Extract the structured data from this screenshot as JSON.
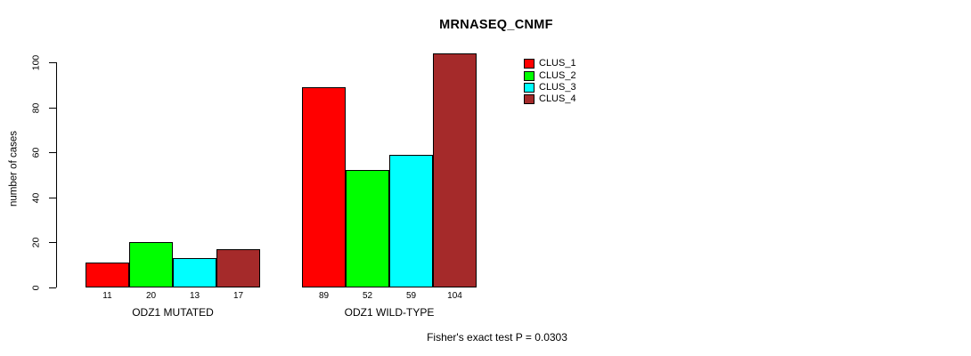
{
  "chart_data": {
    "type": "bar",
    "title": "MRNASEQ_CNMF",
    "ylabel": "number of cases",
    "xlabel": "",
    "yticks": [
      0,
      20,
      40,
      60,
      80,
      100
    ],
    "ylim": [
      0,
      104
    ],
    "grid": false,
    "legend_position": "top-right",
    "categories": [
      "ODZ1 MUTATED",
      "ODZ1 WILD-TYPE"
    ],
    "series": [
      {
        "name": "CLUS_1",
        "color": "#FF0000",
        "values": [
          11,
          89
        ]
      },
      {
        "name": "CLUS_2",
        "color": "#00FF00",
        "values": [
          20,
          52
        ]
      },
      {
        "name": "CLUS_3",
        "color": "#00FFFF",
        "values": [
          13,
          59
        ]
      },
      {
        "name": "CLUS_4",
        "color": "#A52A2A",
        "values": [
          17,
          104
        ]
      }
    ],
    "bar_value_labels": [
      [
        11,
        20,
        13,
        17
      ],
      [
        89,
        52,
        59,
        104
      ]
    ],
    "annotation": "Fisher's exact test P = 0.0303"
  }
}
